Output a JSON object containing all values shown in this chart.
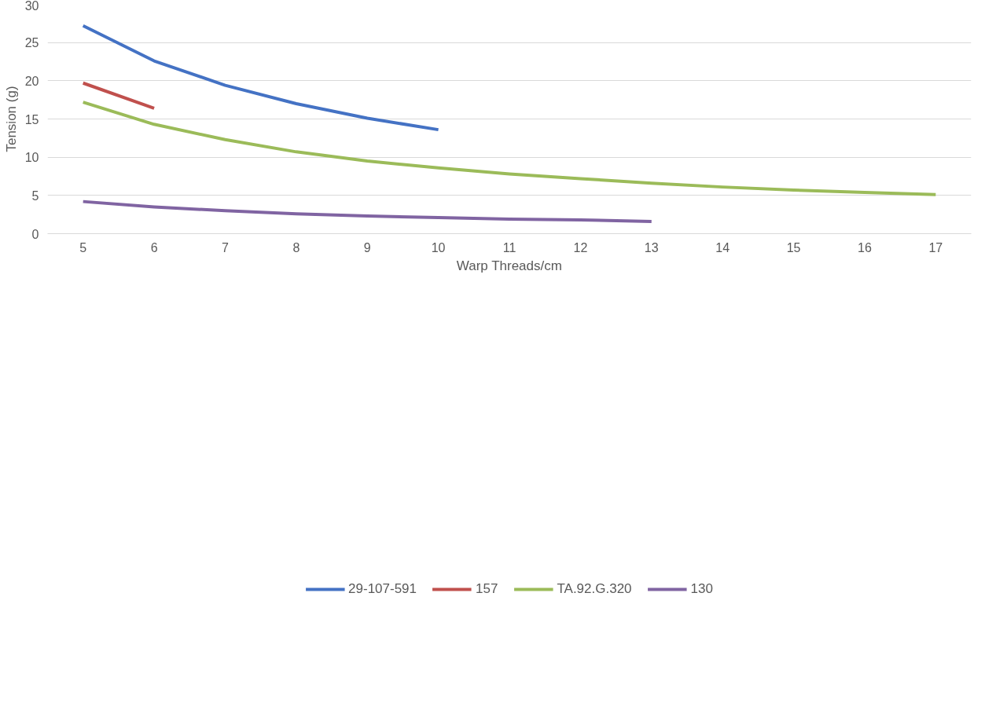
{
  "chart_data": {
    "type": "line",
    "xlabel": "Warp Threads/cm",
    "ylabel": "Tension (g)",
    "x": [
      5,
      6,
      7,
      8,
      9,
      10,
      11,
      12,
      13,
      14,
      15,
      16,
      17
    ],
    "xlim": [
      4.5,
      17.5
    ],
    "xticks": [
      5,
      6,
      7,
      8,
      9,
      10,
      11,
      12,
      13,
      14,
      15,
      16,
      17
    ],
    "ylim": [
      0,
      30
    ],
    "yticks": [
      0,
      5,
      10,
      15,
      20,
      25,
      30
    ],
    "grid": "y",
    "legend": "bottom",
    "marker": "none",
    "line_style": "solid",
    "series": [
      {
        "name": "29-107-591",
        "color": "#4472c4",
        "values": [
          27.2,
          22.6,
          19.4,
          17.0,
          15.1,
          13.6,
          null,
          null,
          null,
          null,
          null,
          null,
          null
        ]
      },
      {
        "name": "157",
        "color": "#c0504d",
        "values": [
          19.7,
          16.4,
          null,
          null,
          null,
          null,
          null,
          null,
          null,
          null,
          null,
          null,
          null
        ]
      },
      {
        "name": "TA.92.G.320",
        "color": "#9bbb59",
        "values": [
          17.2,
          14.3,
          12.3,
          10.7,
          9.5,
          8.6,
          7.8,
          7.2,
          6.6,
          6.1,
          5.7,
          5.4,
          5.1
        ]
      },
      {
        "name": "130",
        "color": "#8064a2",
        "values": [
          4.2,
          3.5,
          3.0,
          2.6,
          2.3,
          2.1,
          1.9,
          1.8,
          1.6,
          null,
          null,
          null,
          null
        ]
      }
    ]
  }
}
